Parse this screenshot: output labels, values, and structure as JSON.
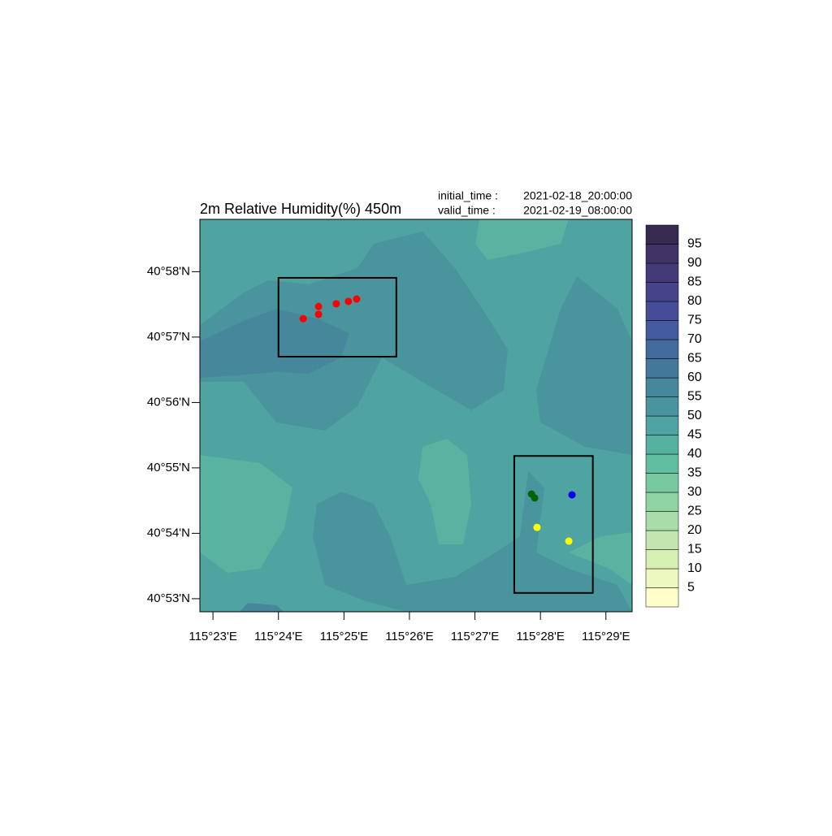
{
  "chart_data": {
    "type": "map",
    "title": "2m Relative Humidity(%) 450m",
    "initial_label": "initial_time :",
    "initial_value": "2021-02-18_20:00:00",
    "valid_label": "valid_time  :",
    "valid_value": "2021-02-19_08:00:00",
    "xlim": [
      115.38,
      115.49
    ],
    "ylim": [
      40.88,
      40.98
    ],
    "xticks": [
      {
        "value": 115.38333,
        "label": "115°23'E"
      },
      {
        "value": 115.4,
        "label": "115°24'E"
      },
      {
        "value": 115.41667,
        "label": "115°25'E"
      },
      {
        "value": 115.43333,
        "label": "115°26'E"
      },
      {
        "value": 115.45,
        "label": "115°27'E"
      },
      {
        "value": 115.46667,
        "label": "115°28'E"
      },
      {
        "value": 115.48333,
        "label": "115°29'E"
      }
    ],
    "yticks": [
      {
        "value": 40.88333,
        "label": "40°53'N"
      },
      {
        "value": 40.9,
        "label": "40°54'N"
      },
      {
        "value": 40.91667,
        "label": "40°55'N"
      },
      {
        "value": 40.93333,
        "label": "40°56'N"
      },
      {
        "value": 40.95,
        "label": "40°57'N"
      },
      {
        "value": 40.96667,
        "label": "40°58'N"
      }
    ],
    "series": [
      {
        "color": "#ff0000",
        "x": [
          115.4063,
          115.4102,
          115.4102,
          115.4147,
          115.4178,
          115.4199
        ],
        "y": [
          40.9547,
          40.9558,
          40.9578,
          40.9585,
          40.9591,
          40.9597
        ]
      },
      {
        "color": "#006400",
        "x": [
          115.4644,
          115.4652
        ],
        "y": [
          40.91,
          40.909
        ]
      },
      {
        "color": "#0000ff",
        "x": [
          115.4747
        ],
        "y": [
          40.9098
        ]
      },
      {
        "color": "#ffff00",
        "x": [
          115.4658,
          115.4739
        ],
        "y": [
          40.9015,
          40.898
        ]
      }
    ],
    "boxes": [
      {
        "xlim": [
          115.4,
          115.43
        ],
        "ylim": [
          40.945,
          40.9651
        ]
      },
      {
        "xlim": [
          115.46,
          115.48
        ],
        "ylim": [
          40.8848,
          40.9197
        ]
      }
    ],
    "colorbar": {
      "levels": [
        5,
        10,
        15,
        20,
        25,
        30,
        35,
        40,
        45,
        50,
        55,
        60,
        65,
        70,
        75,
        80,
        85,
        90,
        95
      ],
      "colors": [
        "#ffffcc",
        "#edf8c0",
        "#d6efb3",
        "#c2e6b0",
        "#a8dca8",
        "#90d3a2",
        "#78c9a0",
        "#62bea0",
        "#55b2a0",
        "#4fa3a0",
        "#4a949e",
        "#46879c",
        "#43789a",
        "#436a9c",
        "#445ba0",
        "#464d98",
        "#47438a",
        "#453a78",
        "#3f3264",
        "#372a50"
      ]
    }
  }
}
